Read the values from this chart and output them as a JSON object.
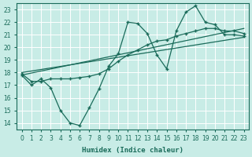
{
  "xlabel": "Humidex (Indice chaleur)",
  "ylabel": "",
  "bg_color": "#c8ece6",
  "line_color": "#1a6b5a",
  "grid_color": "#b8ddd8",
  "xlim": [
    -0.5,
    23.5
  ],
  "ylim": [
    13.5,
    23.5
  ],
  "xticks": [
    0,
    1,
    2,
    3,
    4,
    5,
    6,
    7,
    8,
    9,
    10,
    11,
    12,
    13,
    14,
    15,
    16,
    17,
    18,
    19,
    20,
    21,
    22,
    23
  ],
  "yticks": [
    14,
    15,
    16,
    17,
    18,
    19,
    20,
    21,
    22,
    23
  ],
  "line_main_x": [
    0,
    1,
    2,
    3,
    4,
    5,
    6,
    7,
    8,
    9,
    10,
    11,
    12,
    13,
    14,
    15,
    16,
    17,
    18,
    19,
    20,
    21,
    22,
    23
  ],
  "line_main_y": [
    17.8,
    17.0,
    17.5,
    16.8,
    15.0,
    14.0,
    13.8,
    15.2,
    16.7,
    18.5,
    19.5,
    22.0,
    21.9,
    21.1,
    19.4,
    18.3,
    21.3,
    22.8,
    23.3,
    22.0,
    21.8,
    21.0,
    21.0,
    20.9
  ],
  "line_smooth_x": [
    0,
    1,
    2,
    3,
    4,
    5,
    6,
    7,
    8,
    9,
    10,
    11,
    12,
    13,
    14,
    15,
    16,
    17,
    18,
    19,
    20,
    21,
    22,
    23
  ],
  "line_smooth_y": [
    17.9,
    17.3,
    17.3,
    17.5,
    17.5,
    17.5,
    17.6,
    17.7,
    17.9,
    18.3,
    18.9,
    19.4,
    19.8,
    20.2,
    20.5,
    20.6,
    20.9,
    21.1,
    21.3,
    21.5,
    21.5,
    21.3,
    21.3,
    21.1
  ],
  "trend1_x": [
    0,
    23
  ],
  "trend1_y": [
    17.8,
    21.5
  ],
  "trend2_x": [
    0,
    23
  ],
  "trend2_y": [
    18.0,
    20.8
  ]
}
